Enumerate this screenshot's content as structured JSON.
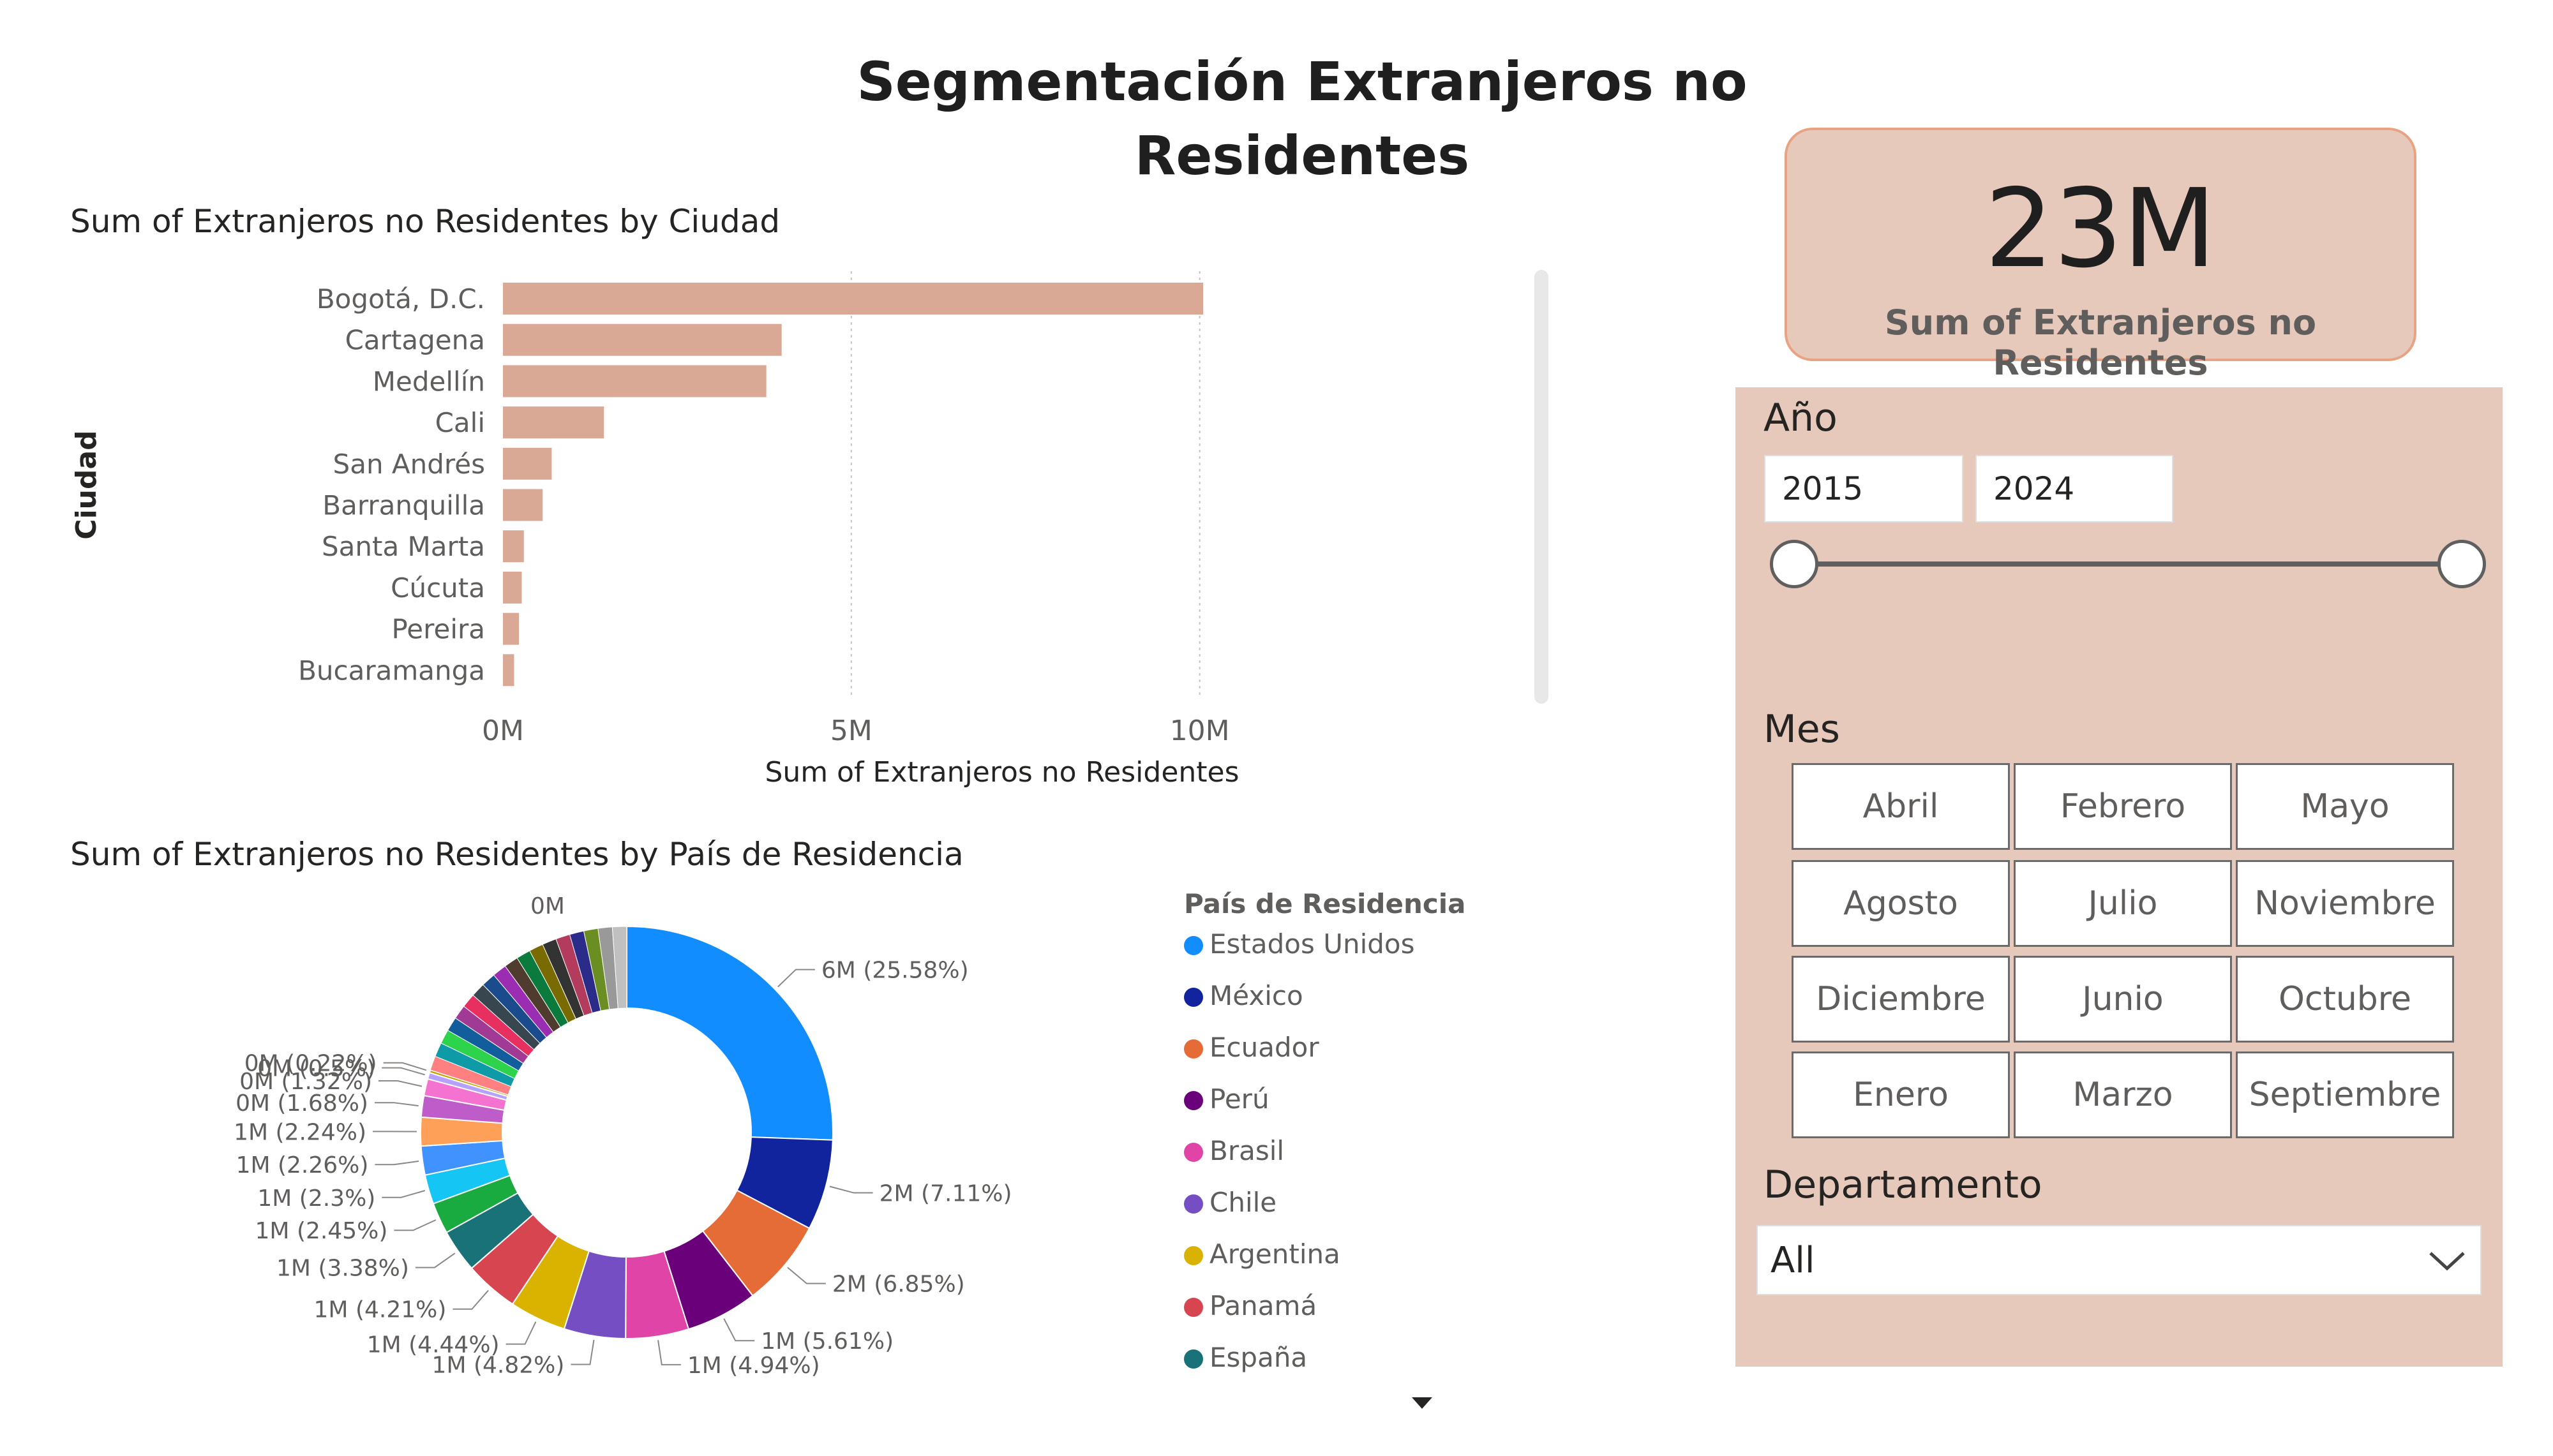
{
  "page_title": "Segmentación Extranjeros no Residentes",
  "bar_chart": {
    "title": "Sum of Extranjeros no Residentes by Ciudad",
    "xlabel": "Sum of Extranjeros no Residentes",
    "ylabel": "Ciudad",
    "bar_color": "#d9a996"
  },
  "donut_chart": {
    "title": "Sum of Extranjeros no Residentes by País de Residencia",
    "legend_title": "País de Residencia",
    "more_icon": "caret-down-icon"
  },
  "chart_data": [
    {
      "type": "bar",
      "orientation": "horizontal",
      "title": "Sum of Extranjeros no Residentes by Ciudad",
      "xlabel": "Sum of Extranjeros no Residentes",
      "ylabel": "Ciudad",
      "categories": [
        "Bogotá, D.C.",
        "Cartagena",
        "Medellín",
        "Cali",
        "San Andrés",
        "Barranquilla",
        "Santa Marta",
        "Cúcuta",
        "Pereira",
        "Bucaramanga"
      ],
      "values": [
        10.05,
        4.0,
        3.78,
        1.45,
        0.7,
        0.57,
        0.3,
        0.27,
        0.23,
        0.16
      ],
      "value_unit": "M",
      "xlim": [
        0,
        12
      ],
      "xticks": [
        0,
        5,
        10
      ],
      "xtick_labels": [
        "0M",
        "5M",
        "10M"
      ],
      "grid": true
    },
    {
      "type": "pie",
      "style": "donut",
      "title": "Sum of Extranjeros no Residentes by País de Residencia",
      "legend_title": "País de Residencia",
      "slices": [
        {
          "name": "Estados Unidos",
          "value": 25.58,
          "label": "6M (25.58%)",
          "color": "#118dff"
        },
        {
          "name": "México",
          "value": 7.11,
          "label": "2M (7.11%)",
          "color": "#12239e"
        },
        {
          "name": "Ecuador",
          "value": 6.85,
          "label": "2M (6.85%)",
          "color": "#e66c37"
        },
        {
          "name": "Perú",
          "value": 5.61,
          "label": "1M (5.61%)",
          "color": "#6b007b"
        },
        {
          "name": "Brasil",
          "value": 4.94,
          "label": "1M (4.94%)",
          "color": "#e044a7"
        },
        {
          "name": "Chile",
          "value": 4.82,
          "label": "1M (4.82%)",
          "color": "#744ec2"
        },
        {
          "name": "Argentina",
          "value": 4.44,
          "label": "1M (4.44%)",
          "color": "#d9b300"
        },
        {
          "name": "Panamá",
          "value": 4.21,
          "label": "1M (4.21%)",
          "color": "#d64550"
        },
        {
          "name": "España",
          "value": 3.38,
          "label": "1M (3.38%)",
          "color": "#197278"
        },
        {
          "name": "",
          "value": 2.45,
          "label": "1M (2.45%)",
          "color": "#1aab40"
        },
        {
          "name": "",
          "value": 2.3,
          "label": "1M (2.3%)",
          "color": "#15c6f4"
        },
        {
          "name": "",
          "value": 2.26,
          "label": "1M (2.26%)",
          "color": "#4092ff"
        },
        {
          "name": "",
          "value": 2.24,
          "label": "1M (2.24%)",
          "color": "#ffa058"
        },
        {
          "name": "",
          "value": 1.68,
          "label": "0M (1.68%)",
          "color": "#be5dc9"
        },
        {
          "name": "",
          "value": 1.32,
          "label": "0M (1.32%)",
          "color": "#f472d0"
        },
        {
          "name": "",
          "value": 0.5,
          "label": "0M (0.5%)",
          "color": "#b5a1ff"
        },
        {
          "name": "",
          "value": 0.22,
          "label": "0M (0.22%)",
          "color": "#c4a200"
        },
        {
          "name": "",
          "value": 20.09,
          "label": "",
          "color": "mixed-small-slices"
        }
      ],
      "small_slice_colors": [
        "#ff8080",
        "#0e9aa7",
        "#2cd34b",
        "#125d9b",
        "#a13a95",
        "#e83060",
        "#37464f",
        "#1a4b8c",
        "#9b2db3",
        "#4f3c2e",
        "#0a7b3c",
        "#7a6b00",
        "#333333",
        "#b33b5e",
        "#2b2b8a",
        "#6b8e23",
        "#999999",
        "#c0c0c0"
      ],
      "top_label": "0M"
    }
  ],
  "kpi": {
    "value": "23M",
    "label": "Sum of Extranjeros no Residentes"
  },
  "slicers": {
    "year": {
      "heading": "Año",
      "start": "2015",
      "end": "2024",
      "range_min": 2015,
      "range_max": 2024
    },
    "month": {
      "heading": "Mes",
      "options": [
        "Abril",
        "Febrero",
        "Mayo",
        "Agosto",
        "Julio",
        "Noviembre",
        "Diciembre",
        "Junio",
        "Octubre",
        "Enero",
        "Marzo",
        "Septiembre"
      ]
    },
    "department": {
      "heading": "Departamento",
      "value": "All"
    }
  }
}
